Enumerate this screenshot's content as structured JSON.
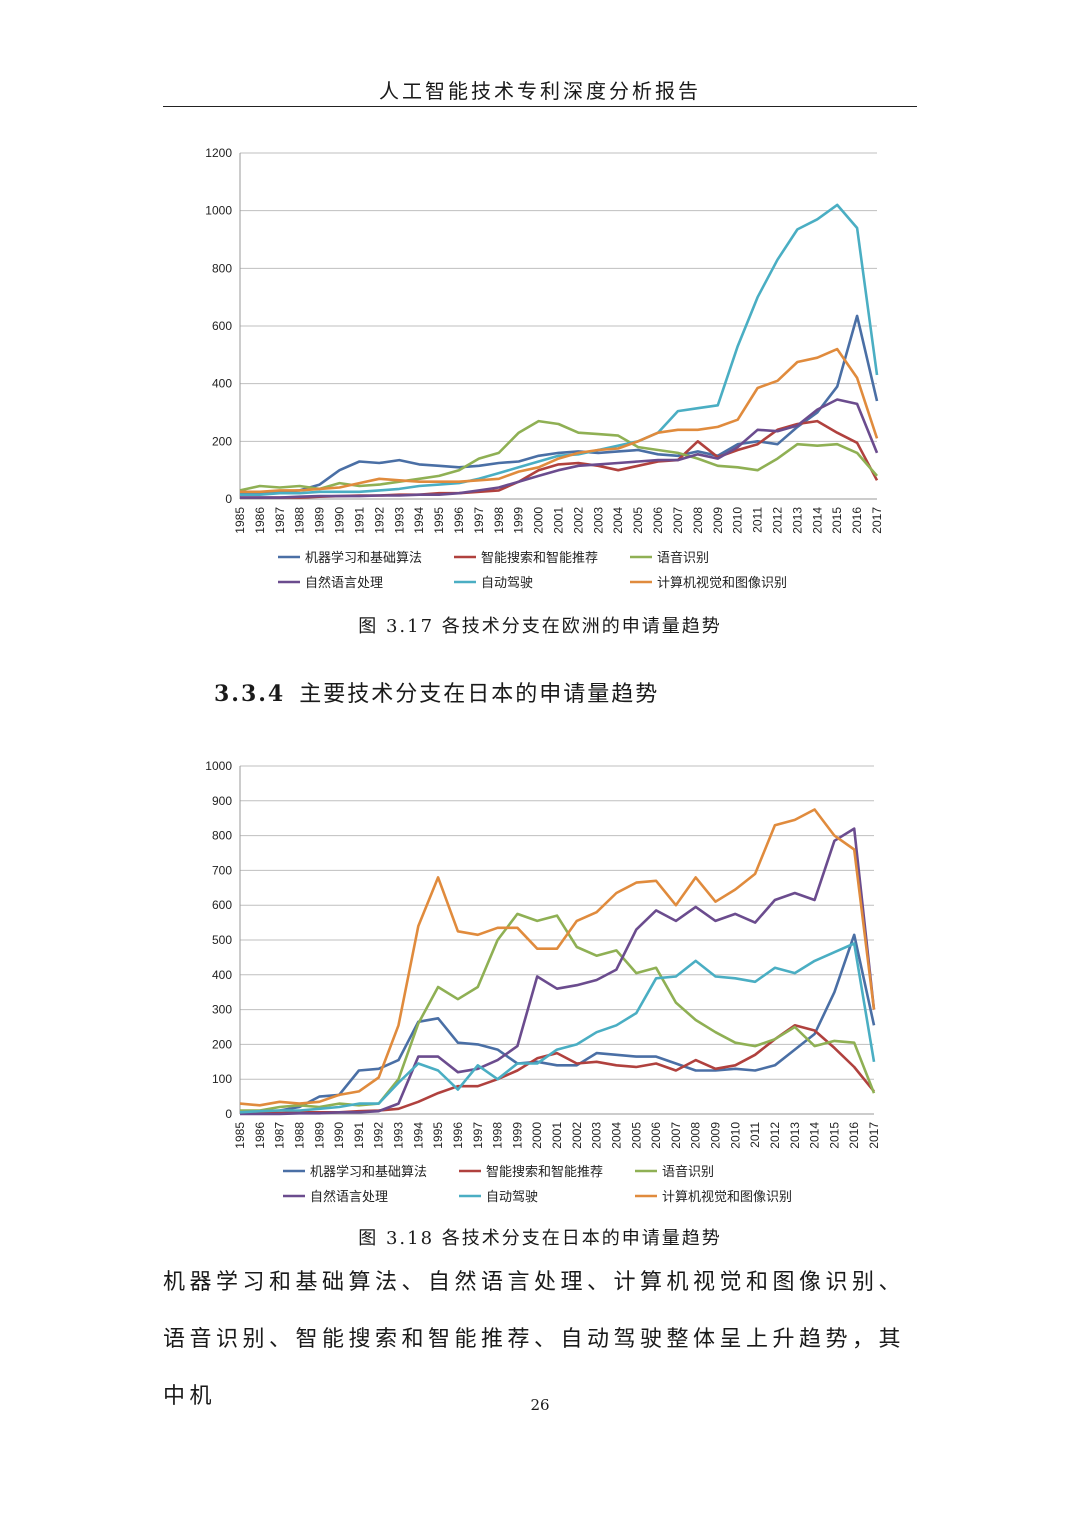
{
  "header": {
    "title": "人工智能技术专利深度分析报告"
  },
  "figure1": {
    "caption": "图 3.17  各技术分支在欧洲的申请量趋势"
  },
  "section": {
    "number": "3.3.4",
    "title": "主要技术分支在日本的申请量趋势"
  },
  "figure2": {
    "caption": "图 3.18 各技术分支在日本的申请量趋势"
  },
  "body": {
    "line1": "机器学习和基础算法、自然语言处理、计算机视觉和图像识别、",
    "line2": "语音识别、智能搜索和智能推荐、自动驾驶整体呈上升趋势，其中机"
  },
  "page": {
    "number": "26"
  },
  "chart_data": [
    {
      "type": "line",
      "title": "",
      "xlabel": "",
      "ylabel": "",
      "ylim": [
        0,
        1200
      ],
      "yticks": [
        0,
        200,
        400,
        600,
        800,
        1000,
        1200
      ],
      "grid": true,
      "legend_position": "bottom",
      "x": [
        "1985",
        "1986",
        "1987",
        "1988",
        "1989",
        "1990",
        "1991",
        "1992",
        "1993",
        "1994",
        "1995",
        "1996",
        "1997",
        "1998",
        "1999",
        "2000",
        "2001",
        "2002",
        "2003",
        "2004",
        "2005",
        "2006",
        "2007",
        "2008",
        "2009",
        "2010",
        "2011",
        "2012",
        "2013",
        "2014",
        "2015",
        "2016",
        "2017"
      ],
      "series": [
        {
          "name": "机器学习和基础算法",
          "color": "#4a6fa5",
          "values": [
            20,
            20,
            25,
            30,
            50,
            100,
            130,
            125,
            135,
            120,
            115,
            110,
            115,
            125,
            130,
            150,
            160,
            165,
            160,
            165,
            170,
            155,
            150,
            165,
            150,
            190,
            200,
            190,
            250,
            300,
            390,
            635,
            340
          ]
        },
        {
          "name": "智能搜索和智能推荐",
          "color": "#b0413e",
          "values": [
            5,
            5,
            5,
            5,
            8,
            10,
            12,
            12,
            15,
            15,
            20,
            20,
            25,
            30,
            60,
            100,
            120,
            125,
            115,
            100,
            115,
            130,
            135,
            200,
            145,
            170,
            190,
            240,
            260,
            270,
            230,
            195,
            65
          ]
        },
        {
          "name": "语音识别",
          "color": "#8fb054",
          "values": [
            30,
            45,
            40,
            45,
            35,
            55,
            45,
            50,
            60,
            70,
            80,
            100,
            140,
            160,
            230,
            270,
            260,
            230,
            225,
            220,
            180,
            170,
            160,
            140,
            115,
            110,
            100,
            140,
            190,
            185,
            190,
            160,
            80
          ]
        },
        {
          "name": "自然语言处理",
          "color": "#6b4c8e",
          "values": [
            5,
            5,
            5,
            8,
            10,
            10,
            10,
            12,
            12,
            15,
            15,
            20,
            30,
            40,
            60,
            80,
            100,
            115,
            120,
            125,
            130,
            135,
            135,
            155,
            140,
            180,
            240,
            235,
            255,
            310,
            345,
            330,
            160
          ]
        },
        {
          "name": "自动驾驶",
          "color": "#4aaec3",
          "values": [
            15,
            15,
            20,
            20,
            25,
            25,
            25,
            30,
            35,
            45,
            50,
            55,
            70,
            90,
            110,
            130,
            150,
            155,
            170,
            185,
            200,
            230,
            305,
            315,
            325,
            530,
            700,
            830,
            935,
            970,
            1020,
            940,
            430
          ]
        },
        {
          "name": "计算机视觉和图像识别",
          "color": "#e08b3d",
          "values": [
            25,
            25,
            30,
            30,
            35,
            40,
            55,
            70,
            65,
            60,
            60,
            60,
            65,
            70,
            95,
            110,
            140,
            160,
            170,
            175,
            200,
            230,
            240,
            240,
            250,
            275,
            385,
            410,
            475,
            490,
            520,
            420,
            210
          ]
        }
      ]
    },
    {
      "type": "line",
      "title": "",
      "xlabel": "",
      "ylabel": "",
      "ylim": [
        0,
        1000
      ],
      "yticks": [
        0,
        100,
        200,
        300,
        400,
        500,
        600,
        700,
        800,
        900,
        1000
      ],
      "grid": true,
      "legend_position": "bottom",
      "x": [
        "1985",
        "1986",
        "1987",
        "1988",
        "1989",
        "1990",
        "1991",
        "1992",
        "1993",
        "1994",
        "1995",
        "1996",
        "1997",
        "1998",
        "1999",
        "2000",
        "2001",
        "2002",
        "2003",
        "2004",
        "2005",
        "2006",
        "2007",
        "2008",
        "2009",
        "2010",
        "2011",
        "2012",
        "2013",
        "2014",
        "2015",
        "2016",
        "2017"
      ],
      "series": [
        {
          "name": "机器学习和基础算法",
          "color": "#4a6fa5",
          "values": [
            5,
            8,
            10,
            20,
            50,
            55,
            125,
            130,
            155,
            265,
            275,
            205,
            200,
            185,
            145,
            150,
            140,
            140,
            175,
            170,
            165,
            165,
            145,
            125,
            125,
            130,
            125,
            140,
            185,
            230,
            350,
            515,
            255
          ]
        },
        {
          "name": "智能搜索和智能推荐",
          "color": "#b0413e",
          "values": [
            2,
            3,
            3,
            5,
            5,
            5,
            8,
            10,
            15,
            35,
            60,
            80,
            80,
            100,
            125,
            160,
            175,
            145,
            150,
            140,
            135,
            145,
            125,
            155,
            130,
            140,
            170,
            215,
            255,
            240,
            190,
            135,
            65
          ]
        },
        {
          "name": "语音识别",
          "color": "#8fb054",
          "values": [
            10,
            10,
            20,
            25,
            20,
            30,
            25,
            30,
            100,
            260,
            365,
            330,
            365,
            500,
            575,
            555,
            570,
            480,
            455,
            470,
            405,
            420,
            320,
            270,
            235,
            205,
            195,
            215,
            250,
            195,
            210,
            205,
            60
          ]
        },
        {
          "name": "自然语言处理",
          "color": "#6b4c8e",
          "values": [
            0,
            0,
            0,
            2,
            2,
            5,
            5,
            8,
            30,
            165,
            165,
            120,
            130,
            155,
            195,
            395,
            360,
            370,
            385,
            415,
            530,
            585,
            555,
            595,
            555,
            575,
            550,
            615,
            635,
            615,
            785,
            820,
            300
          ]
        },
        {
          "name": "自动驾驶",
          "color": "#4aaec3",
          "values": [
            5,
            8,
            10,
            10,
            15,
            20,
            30,
            30,
            90,
            145,
            125,
            70,
            140,
            100,
            145,
            145,
            185,
            200,
            235,
            255,
            290,
            390,
            395,
            440,
            395,
            390,
            380,
            420,
            405,
            440,
            465,
            490,
            150
          ]
        },
        {
          "name": "计算机视觉和图像识别",
          "color": "#e08b3d",
          "values": [
            30,
            25,
            35,
            30,
            35,
            55,
            65,
            105,
            255,
            540,
            680,
            525,
            515,
            535,
            535,
            475,
            475,
            555,
            580,
            635,
            665,
            670,
            600,
            680,
            610,
            645,
            690,
            830,
            845,
            875,
            800,
            760,
            300
          ]
        }
      ]
    }
  ]
}
